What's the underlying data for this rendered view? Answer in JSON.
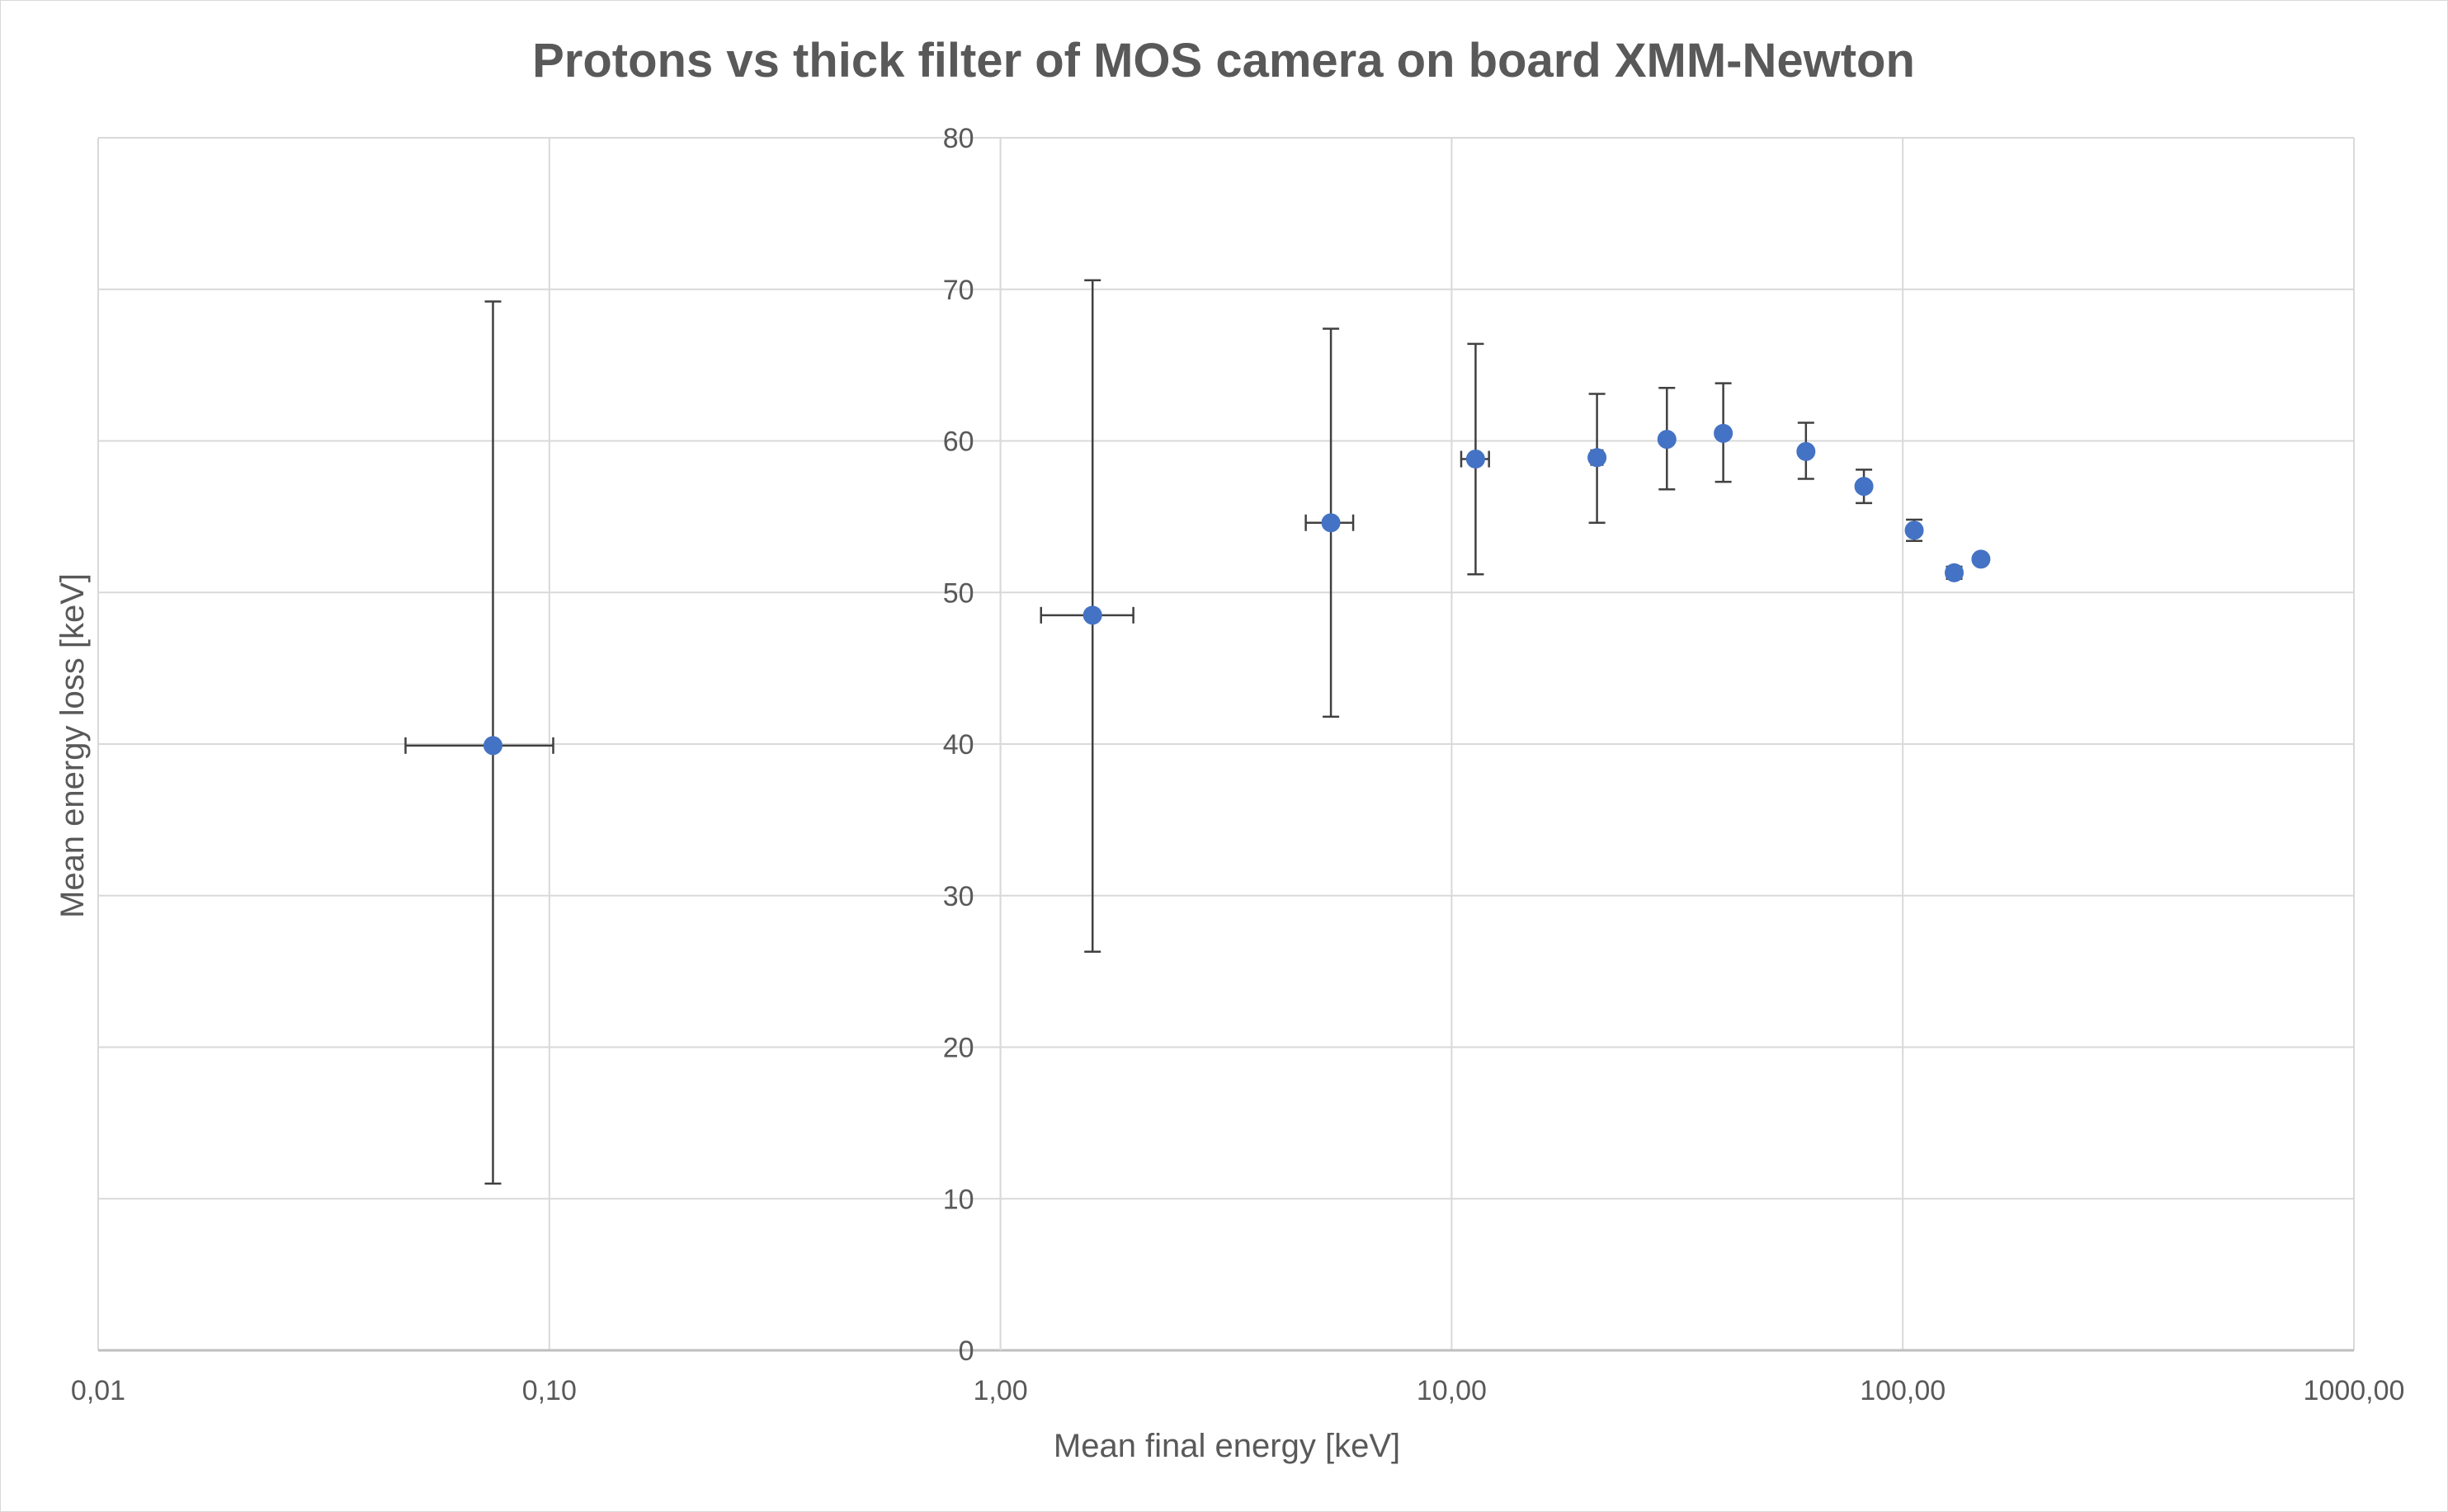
{
  "chart_data": {
    "type": "scatter",
    "title": "Protons vs thick filter of MOS camera on board XMM-Newton",
    "xlabel": "Mean final energy [keV]",
    "ylabel": "Mean energy loss [keV]",
    "x_scale": "log",
    "xlim": [
      0.01,
      1000
    ],
    "ylim": [
      0,
      80
    ],
    "x_tick_values": [
      0.01,
      0.1,
      1,
      10,
      100,
      1000
    ],
    "x_tick_labels": [
      "0,01",
      "0,10",
      "1,00",
      "10,00",
      "100,00",
      "1000,00"
    ],
    "y_tick_values": [
      0,
      10,
      20,
      30,
      40,
      50,
      60,
      70,
      80
    ],
    "y_tick_labels": [
      "0",
      "10",
      "20",
      "30",
      "40",
      "50",
      "60",
      "70",
      "80"
    ],
    "y_axis_crosses_at_x": 1,
    "grid": true,
    "legend": "none",
    "marker_color": "#4472c4",
    "error_bar_color": "#404040",
    "points": [
      {
        "x": 0.075,
        "y": 39.9,
        "y_err_low": 11.0,
        "y_err_high": 69.2,
        "x_err_low": 0.048,
        "x_err_high": 0.102
      },
      {
        "x": 1.6,
        "y": 48.5,
        "y_err_low": 26.3,
        "y_err_high": 70.6,
        "x_err_low": 1.23,
        "x_err_high": 1.97
      },
      {
        "x": 5.4,
        "y": 54.6,
        "y_err_low": 41.8,
        "y_err_high": 67.4,
        "x_err_low": 4.75,
        "x_err_high": 6.05
      },
      {
        "x": 11.3,
        "y": 58.8,
        "y_err_low": 51.2,
        "y_err_high": 66.4,
        "x_err_low": 10.5,
        "x_err_high": 12.1
      },
      {
        "x": 21.0,
        "y": 58.9,
        "y_err_low": 54.6,
        "y_err_high": 63.1,
        "x_err_low": 20.4,
        "x_err_high": 21.6
      },
      {
        "x": 30.0,
        "y": 60.1,
        "y_err_low": 56.8,
        "y_err_high": 63.5,
        "x_err_low": 29.5,
        "x_err_high": 30.5
      },
      {
        "x": 40.0,
        "y": 60.5,
        "y_err_low": 57.3,
        "y_err_high": 63.8,
        "x_err_low": 39.5,
        "x_err_high": 40.5
      },
      {
        "x": 61.0,
        "y": 59.3,
        "y_err_low": 57.5,
        "y_err_high": 61.2,
        "x_err_low": 60.5,
        "x_err_high": 61.5
      },
      {
        "x": 82.0,
        "y": 57.0,
        "y_err_low": 55.9,
        "y_err_high": 58.1,
        "x_err_low": 81.5,
        "x_err_high": 82.5
      },
      {
        "x": 106.0,
        "y": 54.1,
        "y_err_low": 53.4,
        "y_err_high": 54.8,
        "x_err_low": 105.5,
        "x_err_high": 106.5
      },
      {
        "x": 130.0,
        "y": 51.3,
        "y_err_low": 50.9,
        "y_err_high": 51.7,
        "x_err_low": 129.5,
        "x_err_high": 130.5
      },
      {
        "x": 149.0,
        "y": 52.2,
        "y_err_low": 52.2,
        "y_err_high": 52.2,
        "x_err_low": 149.0,
        "x_err_high": 149.0
      }
    ]
  }
}
